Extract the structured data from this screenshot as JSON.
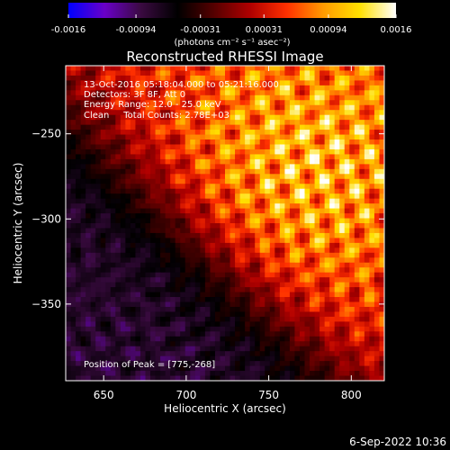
{
  "colorbar": {
    "tick_labels": [
      "-0.0016",
      "-0.00094",
      "-0.00031",
      "0.00031",
      "0.00094",
      "0.0016"
    ],
    "tick_values": [
      -0.0016,
      -0.00094,
      -0.00031,
      0.00031,
      0.00094,
      0.0016
    ],
    "min": -0.0016,
    "max": 0.0016,
    "unit_label": "(photons cm⁻² s⁻¹ asec⁻²)",
    "colors": [
      "#0000ff",
      "#6a00c8",
      "#3a0a40",
      "#000000",
      "#550000",
      "#b00000",
      "#ff3000",
      "#ff9a00",
      "#ffe000",
      "#ffffff"
    ]
  },
  "chart_data": {
    "type": "heatmap",
    "title": "Reconstructed RHESSI Image",
    "xlabel": "Heliocentric X (arcsec)",
    "ylabel": "Heliocentric Y (arcsec)",
    "xlim": [
      627,
      820
    ],
    "ylim": [
      -395,
      -210
    ],
    "x_ticks": [
      650,
      700,
      750,
      800
    ],
    "y_ticks": [
      -250,
      -300,
      -350
    ],
    "x_tick_labels": [
      "650",
      "700",
      "750",
      "800"
    ],
    "y_tick_labels": [
      "−250",
      "−300",
      "−350"
    ],
    "peak": [
      775,
      -268
    ],
    "annotations": [
      "13-Oct-2016 05:18:04.000 to 05:21:16.000",
      "Detectors: 3F 8F, Att 0",
      "Energy Range: 12.0 - 25.0 keV",
      "Clean     Total Counts: 2.78E+03",
      "Position of Peak = [775,-268]"
    ]
  },
  "footer": {
    "timestamp": "6-Sep-2022 10:36"
  }
}
